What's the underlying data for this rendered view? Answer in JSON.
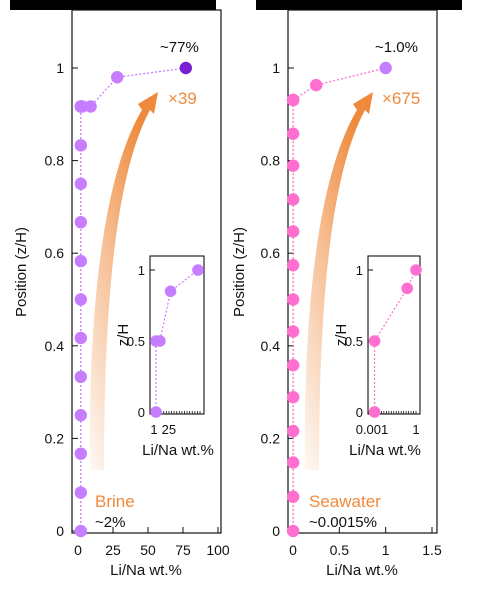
{
  "chart_data": [
    {
      "id": "brine_main",
      "type": "scatter",
      "xlabel": "Li/Na wt.%",
      "ylabel": "Position (z/H)",
      "xlim": [
        0,
        100
      ],
      "ylim": [
        0,
        1.1
      ],
      "xticks": [
        "0",
        "25",
        "50",
        "75",
        "100"
      ],
      "yticks": [
        "0",
        "0.2",
        "0.4",
        "0.6",
        "0.8",
        "1"
      ],
      "x": [
        2,
        2,
        2,
        2,
        2,
        2,
        2,
        2,
        2,
        2,
        2,
        2,
        2,
        2,
        3,
        9,
        28,
        77
      ],
      "y": [
        0,
        0.083,
        0.167,
        0.25,
        0.333,
        0.417,
        0.5,
        0.583,
        0.667,
        0.75,
        0.833,
        0.917,
        0.917,
        0.917,
        0.917,
        0.917,
        0.98,
        1.0
      ],
      "point_color": "#c77dff",
      "top_point_color": "#7a1fd1",
      "annotations": {
        "top_value": "~77%",
        "factor": "×39",
        "label": "Brine",
        "bottom_value": "~2%"
      },
      "inset": {
        "xlabel": "Li/Na wt.%",
        "ylabel": "z/H",
        "xticks": [
          "1",
          "25"
        ],
        "yticks": [
          "0",
          "0.5",
          "1"
        ],
        "x": [
          2,
          2,
          9,
          28,
          77
        ],
        "y": [
          0,
          0.5,
          0.5,
          0.85,
          1.0
        ]
      }
    },
    {
      "id": "seawater_main",
      "type": "scatter",
      "xlabel": "Li/Na wt.%",
      "ylabel": "Position (z/H)",
      "xlim": [
        0,
        1.5
      ],
      "ylim": [
        0,
        1.1
      ],
      "xticks": [
        "0",
        "0.5",
        "1",
        "1.5"
      ],
      "yticks": [
        "0",
        "0.2",
        "0.4",
        "0.6",
        "0.8",
        "1"
      ],
      "x": [
        0.0015,
        0.0015,
        0.0015,
        0.0015,
        0.0015,
        0.0015,
        0.0015,
        0.0015,
        0.0015,
        0.0015,
        0.0015,
        0.0015,
        0.0015,
        0.0015,
        0.0015,
        0.0015,
        0.0015,
        0.0015,
        0.25,
        1.0
      ],
      "y": [
        0,
        0.074,
        0.148,
        0.216,
        0.289,
        0.358,
        0.431,
        0.5,
        0.574,
        0.647,
        0.716,
        0.789,
        0.858,
        0.931,
        0.931,
        0.931,
        0.931,
        0.931,
        0.963,
        1.0
      ],
      "point_color": "#ff6fd0",
      "top_point_color": "#c77dff",
      "annotations": {
        "top_value": "~1.0%",
        "factor": "×675",
        "label": "Seawater",
        "bottom_value": "~0.0015%"
      },
      "inset": {
        "xlabel": "Li/Na wt.%",
        "ylabel": "z/H",
        "xticks": [
          "0.001",
          "1"
        ],
        "yticks": [
          "0",
          "0.5",
          "1"
        ],
        "x": [
          0.0015,
          0.0015,
          0.25,
          1.0
        ],
        "y": [
          0,
          0.5,
          0.87,
          1.0
        ]
      }
    }
  ]
}
